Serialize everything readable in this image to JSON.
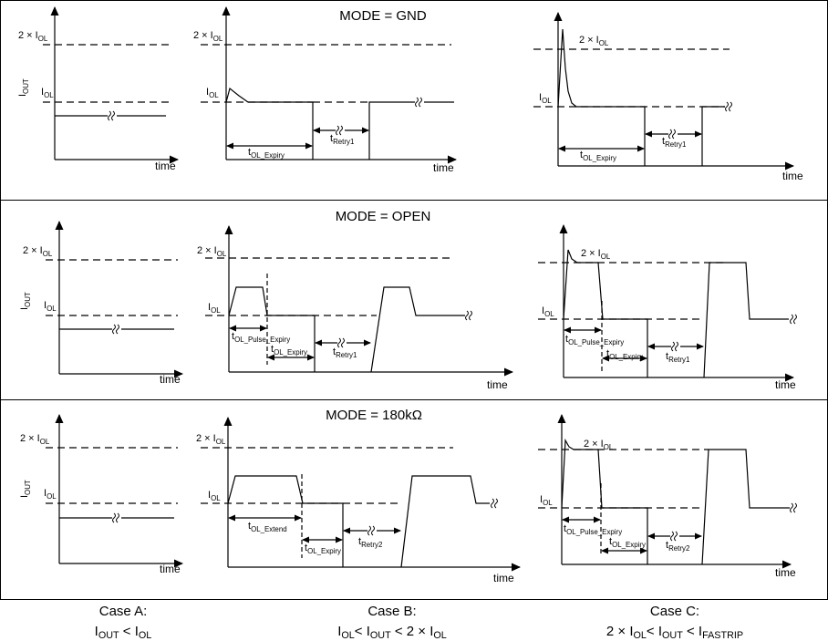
{
  "modes": [
    "MODE = GND",
    "MODE = OPEN",
    "MODE = 180kΩ"
  ],
  "labels": {
    "two_iol": [
      {
        "t": "2 × I"
      },
      {
        "s": "OL"
      }
    ],
    "iol": [
      {
        "t": "I"
      },
      {
        "s": "OL"
      }
    ],
    "iout": [
      {
        "t": "I"
      },
      {
        "s": "OUT"
      }
    ],
    "time": "time",
    "t_ol_expiry": [
      {
        "t": "t"
      },
      {
        "s": "OL_Expiry"
      }
    ],
    "t_ol_pulse_expiry": [
      {
        "t": "t"
      },
      {
        "s": "OL_Pulse_Expiry"
      }
    ],
    "t_ol_extend": [
      {
        "t": "t"
      },
      {
        "s": "OL_Extend"
      }
    ],
    "t_retry1": [
      {
        "t": "t"
      },
      {
        "s": "Retry1"
      }
    ],
    "t_retry2": [
      {
        "t": "t"
      },
      {
        "s": "Retry2"
      }
    ]
  },
  "cases": [
    {
      "title": "Case A:",
      "condition": [
        {
          "t": "I"
        },
        {
          "s": "OUT"
        },
        {
          "t": " < I"
        },
        {
          "s": "OL"
        }
      ]
    },
    {
      "title": "Case B:",
      "condition": [
        {
          "t": "I"
        },
        {
          "s": "OL"
        },
        {
          "t": "< I"
        },
        {
          "s": "OUT"
        },
        {
          "t": " < 2 × I"
        },
        {
          "s": "OL"
        }
      ]
    },
    {
      "title": "Case C:",
      "condition": [
        {
          "t": "2 ×  I"
        },
        {
          "s": "OL"
        },
        {
          "t": "< I"
        },
        {
          "s": "OUT"
        },
        {
          "t": " < I"
        },
        {
          "s": "FASTRIP"
        }
      ]
    }
  ]
}
